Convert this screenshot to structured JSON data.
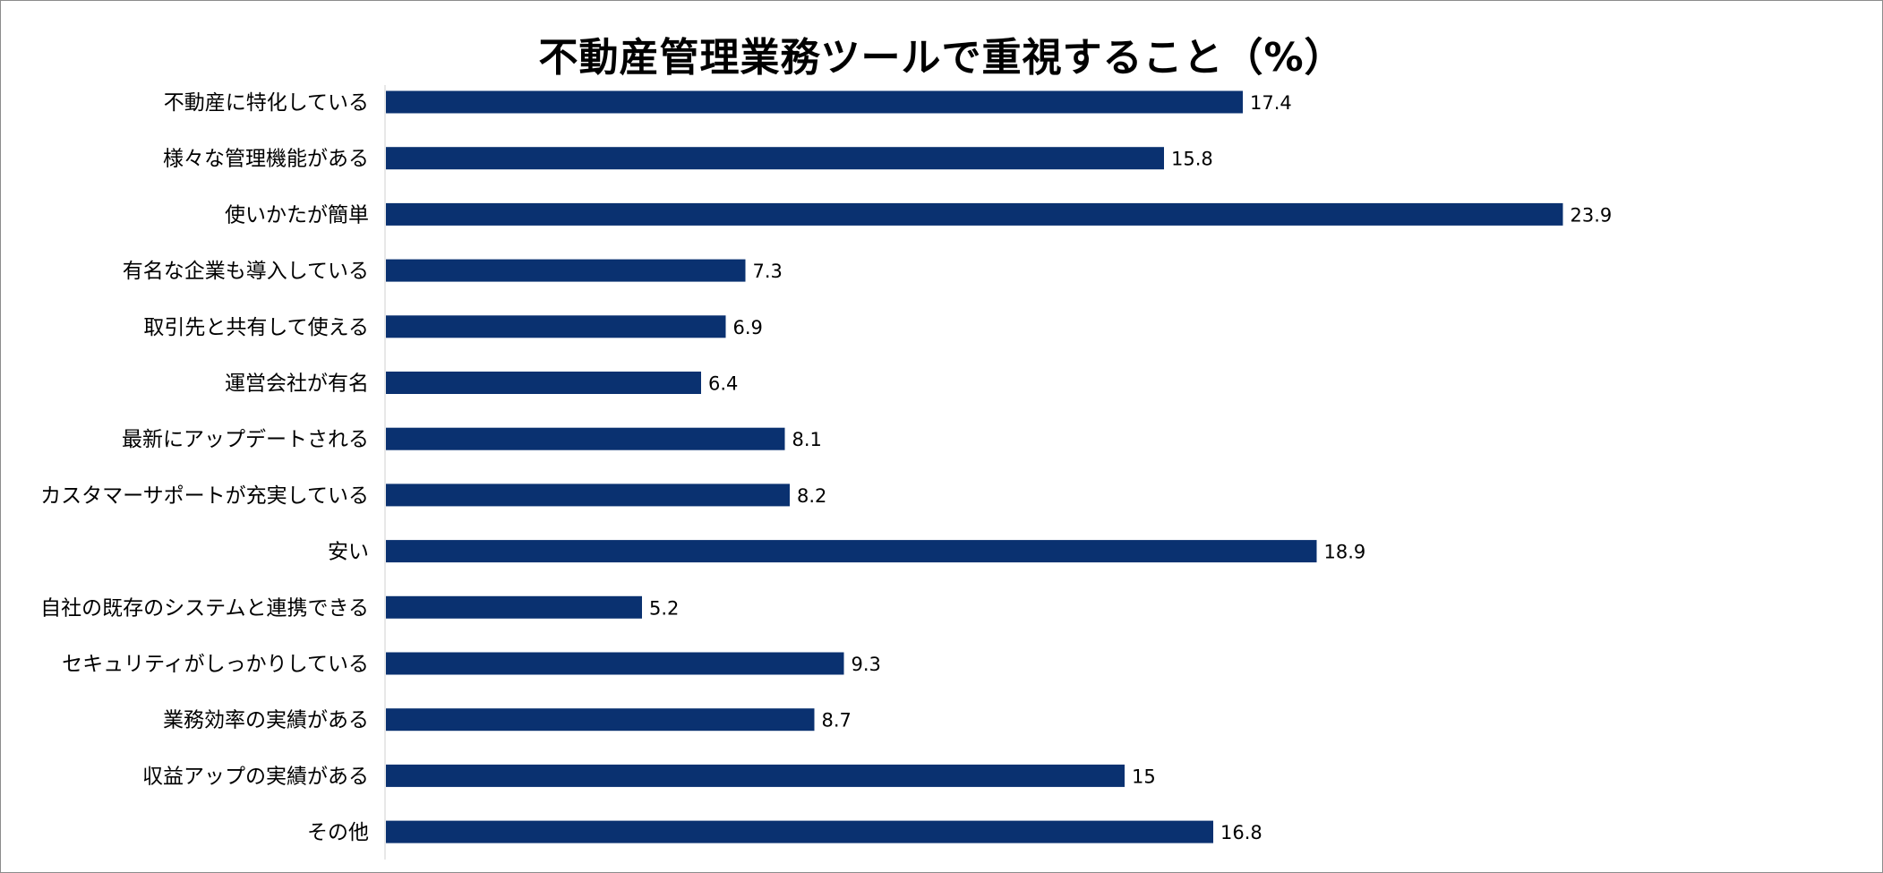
{
  "chart_data": {
    "type": "bar",
    "orientation": "horizontal",
    "title": "不動産管理業務ツールで重視すること（%）",
    "categories": [
      "不動産に特化している",
      "様々な管理機能がある",
      "使いかたが簡単",
      "有名な企業も導入している",
      "取引先と共有して使える",
      "運営会社が有名",
      "最新にアップデートされる",
      "カスタマーサポートが充実している",
      "安い",
      "自社の既存のシステムと連携できる",
      "セキュリティがしっかりしている",
      "業務効率の実績がある",
      "収益アップの実績がある",
      "その他"
    ],
    "values": [
      17.4,
      15.8,
      23.9,
      7.3,
      6.9,
      6.4,
      8.1,
      8.2,
      18.9,
      5.2,
      9.3,
      8.7,
      15,
      16.8
    ],
    "value_labels": [
      "17.4",
      "15.8",
      "23.9",
      "7.3",
      "6.9",
      "6.4",
      "8.1",
      "8.2",
      "18.9",
      "5.2",
      "9.3",
      "8.7",
      "15",
      "16.8"
    ],
    "xlim": [
      0,
      25
    ],
    "grid": false,
    "legend": "none",
    "bar_color": "#0a3170",
    "axis_color": "#d0d0d0"
  }
}
